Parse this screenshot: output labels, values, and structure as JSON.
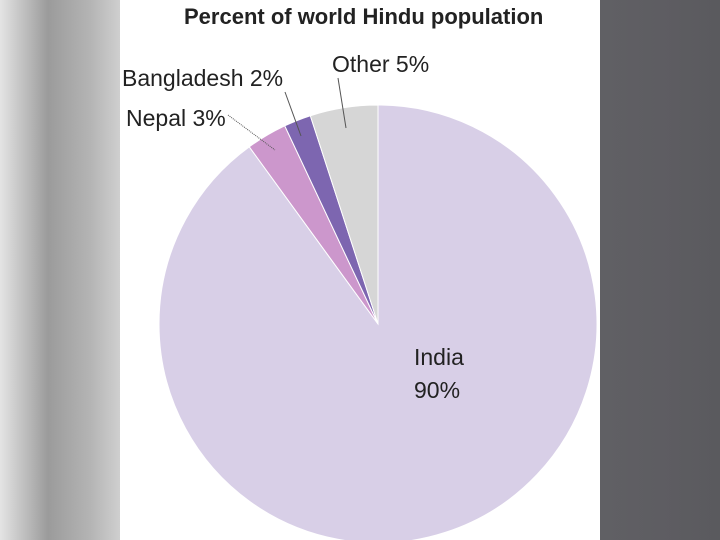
{
  "chart_data": {
    "type": "pie",
    "title": "Percent of world Hindu population",
    "slices": [
      {
        "label": "India",
        "value_label": "90%",
        "value": 90,
        "color": "#d8cfe7"
      },
      {
        "label": "Nepal",
        "value_label": "3%",
        "value": 3,
        "color": "#cc97cc"
      },
      {
        "label": "Bangladesh",
        "value_label": "2%",
        "value": 2,
        "color": "#7d66b0"
      },
      {
        "label": "Other",
        "value_label": "5%",
        "value": 5,
        "color": "#d6d6d6"
      }
    ],
    "labels": {
      "india_name": "India",
      "india_value": "90%",
      "nepal": "Nepal 3%",
      "bangladesh": "Bangladesh 2%",
      "other": "Other 5%"
    }
  }
}
